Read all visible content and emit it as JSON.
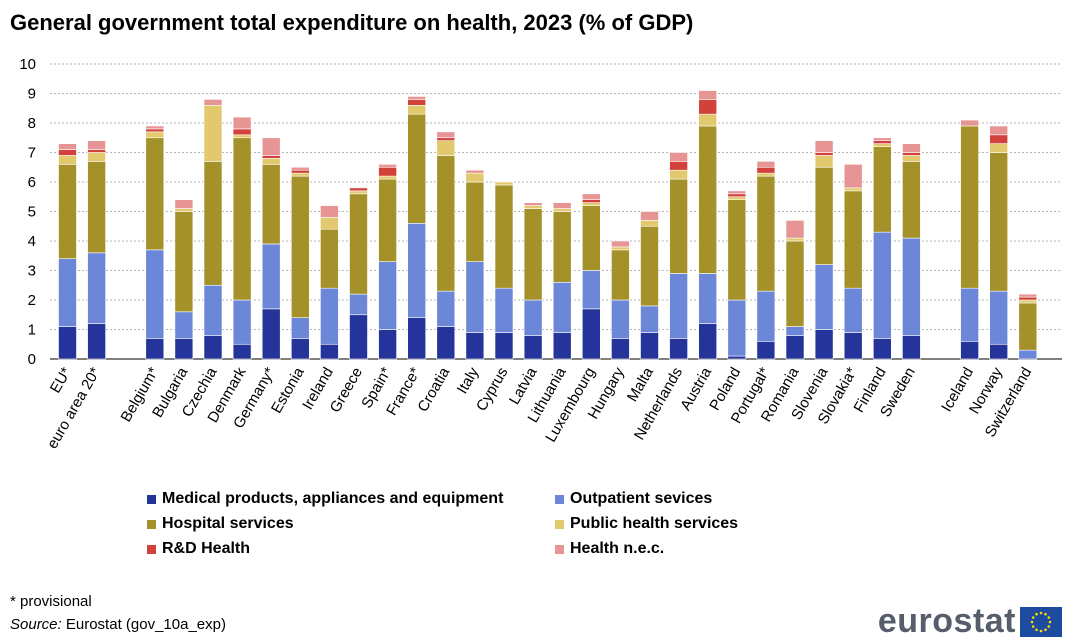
{
  "chart_data": {
    "type": "bar",
    "stacked": true,
    "title": "General government total expenditure on health, 2023 (% of GDP)",
    "ylim": [
      0,
      10
    ],
    "yticks": [
      "0",
      "1",
      "2",
      "3",
      "4",
      "5",
      "6",
      "7",
      "8",
      "9",
      "10"
    ],
    "grid": true,
    "categories": [
      "EU*",
      "euro area 20*",
      "Belgium*",
      "Bulgaria",
      "Czechia",
      "Denmark",
      "Germany*",
      "Estonia",
      "Ireland",
      "Greece",
      "Spain*",
      "France*",
      "Croatia",
      "Italy",
      "Cyprus",
      "Latvia",
      "Lithuania",
      "Luxembourg",
      "Hungary",
      "Malta",
      "Netherlands",
      "Austria",
      "Poland",
      "Portugal*",
      "Romania",
      "Slovenia",
      "Slovakia*",
      "Finland",
      "Sweden",
      "Iceland",
      "Norway",
      "Switzerland"
    ],
    "groups": [
      2,
      27,
      3
    ],
    "series": [
      {
        "name": "Medical products, appliances and equipment",
        "color": "#24349a",
        "values": [
          1.1,
          1.2,
          0.7,
          0.7,
          0.8,
          0.5,
          1.7,
          0.7,
          0.5,
          1.5,
          1.0,
          1.4,
          1.1,
          0.9,
          0.9,
          0.8,
          0.9,
          1.7,
          0.7,
          0.9,
          0.7,
          1.2,
          0.1,
          0.6,
          0.8,
          1.0,
          0.9,
          0.7,
          0.8,
          0.6,
          0.5,
          0.0
        ]
      },
      {
        "name": "Outpatient sevices",
        "color": "#6c86d8",
        "values": [
          2.3,
          2.4,
          3.0,
          0.9,
          1.7,
          1.5,
          2.2,
          0.7,
          1.9,
          0.7,
          2.3,
          3.2,
          1.2,
          2.4,
          1.5,
          1.2,
          1.7,
          1.3,
          1.3,
          0.9,
          2.2,
          1.7,
          1.9,
          1.7,
          0.3,
          2.2,
          1.5,
          3.6,
          3.3,
          1.8,
          1.8,
          0.3
        ]
      },
      {
        "name": "Hospital services",
        "color": "#a5912a",
        "values": [
          3.2,
          3.1,
          3.8,
          3.4,
          4.2,
          5.5,
          2.7,
          4.8,
          2.0,
          3.4,
          2.8,
          3.7,
          4.6,
          2.7,
          3.5,
          3.1,
          2.4,
          2.2,
          1.7,
          2.7,
          3.2,
          5.0,
          3.4,
          3.9,
          2.9,
          3.3,
          3.3,
          2.9,
          2.6,
          5.5,
          4.7,
          1.6
        ]
      },
      {
        "name": "Public health services",
        "color": "#e3c96d",
        "values": [
          0.3,
          0.3,
          0.2,
          0.1,
          1.9,
          0.1,
          0.2,
          0.1,
          0.4,
          0.1,
          0.1,
          0.3,
          0.5,
          0.3,
          0.1,
          0.1,
          0.1,
          0.1,
          0.1,
          0.2,
          0.3,
          0.4,
          0.1,
          0.1,
          0.1,
          0.4,
          0.1,
          0.1,
          0.2,
          0.0,
          0.3,
          0.1
        ]
      },
      {
        "name": "R&D Health",
        "color": "#d2413a",
        "values": [
          0.2,
          0.1,
          0.1,
          0.0,
          0.0,
          0.2,
          0.1,
          0.1,
          0.0,
          0.1,
          0.3,
          0.2,
          0.1,
          0.0,
          0.0,
          0.0,
          0.0,
          0.1,
          0.0,
          0.0,
          0.3,
          0.5,
          0.1,
          0.2,
          0.0,
          0.1,
          0.0,
          0.1,
          0.1,
          0.0,
          0.3,
          0.1
        ]
      },
      {
        "name": "Health n.e.c.",
        "color": "#e79495",
        "values": [
          0.2,
          0.3,
          0.1,
          0.3,
          0.2,
          0.4,
          0.6,
          0.1,
          0.4,
          0.0,
          0.1,
          0.1,
          0.2,
          0.1,
          0.0,
          0.1,
          0.2,
          0.2,
          0.2,
          0.3,
          0.3,
          0.3,
          0.1,
          0.2,
          0.6,
          0.4,
          0.8,
          0.1,
          0.3,
          0.2,
          0.3,
          0.1
        ]
      }
    ]
  },
  "footnotes": {
    "provisional": "* provisional",
    "source_label": "Source:",
    "source_text": "Eurostat (gov_10a_exp)"
  },
  "logo": {
    "text": "eurostat"
  }
}
